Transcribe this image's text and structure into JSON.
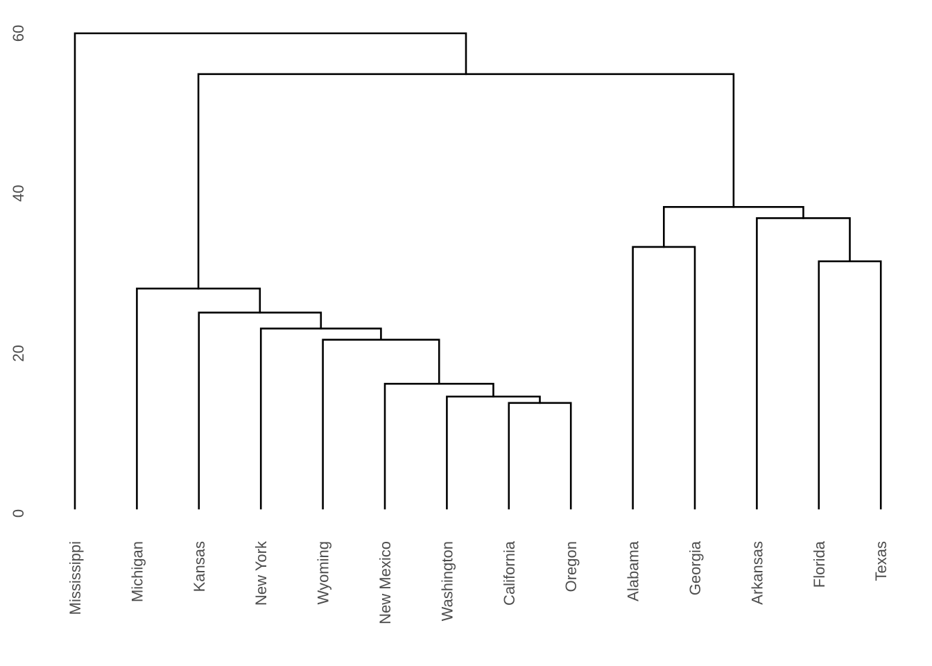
{
  "chart_data": {
    "type": "dendrogram",
    "leaves": [
      "Mississippi",
      "Michigan",
      "Kansas",
      "New York",
      "Wyoming",
      "New Mexico",
      "Washington",
      "California",
      "Oregon",
      "Alabama",
      "Georgia",
      "Arkansas",
      "Florida",
      "Texas"
    ],
    "merges": [
      {
        "left": "California",
        "right": "Oregon",
        "height": 13.8
      },
      {
        "left": "Washington",
        "right": "California+Oregon",
        "height": 14.6
      },
      {
        "left": "New Mexico",
        "right": "Washington+California+Oregon",
        "height": 16.2
      },
      {
        "left": "Wyoming",
        "right": "New Mexico+Washington+California+Oregon",
        "height": 21.7
      },
      {
        "left": "New York",
        "right": "Wyoming+New Mexico+Washington+California+Oregon",
        "height": 23.1
      },
      {
        "left": "Kansas",
        "right": "New York+Wyoming+New Mexico+Washington+California+Oregon",
        "height": 25.1
      },
      {
        "left": "Michigan",
        "right": "Kansas+New York+Wyoming+New Mexico+Washington+California+Oregon",
        "height": 28.1
      },
      {
        "left": "Florida",
        "right": "Texas",
        "height": 31.5
      },
      {
        "left": "Alabama",
        "right": "Georgia",
        "height": 33.3
      },
      {
        "left": "Arkansas",
        "right": "Florida+Texas",
        "height": 36.9
      },
      {
        "left": "Alabama+Georgia",
        "right": "Arkansas+Florida+Texas",
        "height": 38.3
      },
      {
        "left": "Michigan cluster",
        "right": "Alabama cluster",
        "height": 54.9
      },
      {
        "left": "Mississippi",
        "right": "all others",
        "height": 60.0
      }
    ],
    "y_ticks": [
      "0",
      "20",
      "40",
      "60"
    ],
    "ylim": [
      0,
      60
    ],
    "title": "",
    "xlabel": "",
    "ylabel": "",
    "grid": false
  }
}
